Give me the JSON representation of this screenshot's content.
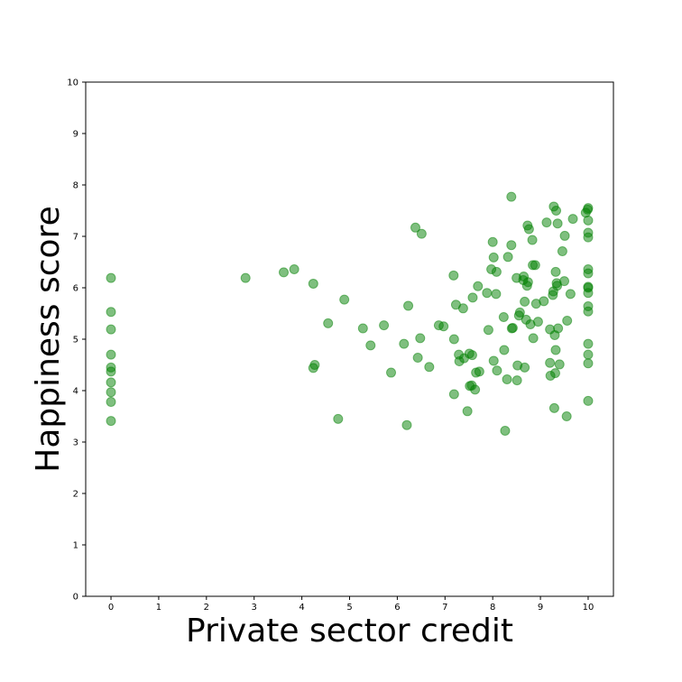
{
  "chart_data": {
    "type": "scatter",
    "title": "",
    "xlabel": "Private sector credit",
    "ylabel": "Happiness score",
    "xlim": [
      -0.53,
      10.53
    ],
    "ylim": [
      0,
      10
    ],
    "x_ticks": [
      "0",
      "1",
      "2",
      "3",
      "4",
      "5",
      "6",
      "7",
      "8",
      "9",
      "10"
    ],
    "y_ticks": [
      "0",
      "1",
      "2",
      "3",
      "4",
      "5",
      "6",
      "7",
      "8",
      "9",
      "10"
    ],
    "grid": false,
    "color": "#008000",
    "series": [
      {
        "name": "",
        "points": [
          [
            0,
            6.19
          ],
          [
            0,
            5.53
          ],
          [
            0,
            5.19
          ],
          [
            0,
            4.7
          ],
          [
            0,
            4.45
          ],
          [
            0,
            4.37
          ],
          [
            0,
            4.16
          ],
          [
            0,
            3.97
          ],
          [
            0,
            3.78
          ],
          [
            0,
            3.41
          ],
          [
            2.82,
            6.19
          ],
          [
            3.62,
            6.3
          ],
          [
            3.84,
            6.36
          ],
          [
            4.24,
            6.08
          ],
          [
            4.24,
            4.44
          ],
          [
            4.27,
            4.5
          ],
          [
            4.55,
            5.31
          ],
          [
            4.76,
            3.45
          ],
          [
            4.89,
            5.77
          ],
          [
            5.28,
            5.21
          ],
          [
            5.44,
            4.88
          ],
          [
            5.72,
            5.27
          ],
          [
            5.87,
            4.35
          ],
          [
            6.14,
            4.91
          ],
          [
            6.2,
            3.33
          ],
          [
            6.23,
            5.65
          ],
          [
            6.38,
            7.17
          ],
          [
            6.43,
            4.64
          ],
          [
            6.48,
            5.02
          ],
          [
            6.51,
            7.05
          ],
          [
            6.67,
            4.46
          ],
          [
            6.87,
            5.27
          ],
          [
            6.97,
            5.25
          ],
          [
            7.18,
            6.24
          ],
          [
            7.19,
            5.0
          ],
          [
            7.19,
            3.93
          ],
          [
            7.23,
            5.67
          ],
          [
            7.29,
            4.7
          ],
          [
            7.3,
            4.57
          ],
          [
            7.38,
            5.6
          ],
          [
            7.4,
            4.63
          ],
          [
            7.47,
            3.6
          ],
          [
            7.51,
            4.72
          ],
          [
            7.52,
            4.09
          ],
          [
            7.56,
            4.1
          ],
          [
            7.57,
            4.69
          ],
          [
            7.58,
            5.81
          ],
          [
            7.63,
            4.02
          ],
          [
            7.65,
            4.35
          ],
          [
            7.69,
            6.03
          ],
          [
            7.72,
            4.37
          ],
          [
            7.88,
            5.9
          ],
          [
            7.91,
            5.18
          ],
          [
            7.97,
            6.36
          ],
          [
            8.0,
            6.89
          ],
          [
            8.02,
            4.58
          ],
          [
            8.02,
            6.59
          ],
          [
            8.07,
            5.88
          ],
          [
            8.08,
            6.31
          ],
          [
            8.09,
            4.39
          ],
          [
            8.23,
            5.43
          ],
          [
            8.24,
            4.79
          ],
          [
            8.26,
            3.22
          ],
          [
            8.3,
            4.22
          ],
          [
            8.32,
            6.6
          ],
          [
            8.39,
            6.83
          ],
          [
            8.39,
            7.77
          ],
          [
            8.4,
            5.21
          ],
          [
            8.42,
            5.22
          ],
          [
            8.5,
            6.19
          ],
          [
            8.51,
            4.2
          ],
          [
            8.52,
            4.49
          ],
          [
            8.55,
            5.46
          ],
          [
            8.57,
            5.52
          ],
          [
            8.64,
            6.15
          ],
          [
            8.65,
            6.22
          ],
          [
            8.67,
            4.45
          ],
          [
            8.67,
            5.73
          ],
          [
            8.7,
            5.38
          ],
          [
            8.72,
            6.04
          ],
          [
            8.73,
            7.21
          ],
          [
            8.74,
            6.11
          ],
          [
            8.76,
            7.14
          ],
          [
            8.79,
            5.29
          ],
          [
            8.83,
            6.93
          ],
          [
            8.84,
            6.44
          ],
          [
            8.85,
            5.02
          ],
          [
            8.89,
            6.44
          ],
          [
            8.91,
            5.69
          ],
          [
            8.95,
            5.34
          ],
          [
            9.07,
            5.74
          ],
          [
            9.13,
            7.27
          ],
          [
            9.2,
            4.54
          ],
          [
            9.2,
            5.19
          ],
          [
            9.21,
            4.29
          ],
          [
            9.26,
            5.86
          ],
          [
            9.27,
            5.93
          ],
          [
            9.28,
            7.58
          ],
          [
            9.29,
            3.66
          ],
          [
            9.3,
            5.08
          ],
          [
            9.31,
            4.34
          ],
          [
            9.32,
            4.79
          ],
          [
            9.32,
            6.31
          ],
          [
            9.33,
            7.5
          ],
          [
            9.34,
            6.09
          ],
          [
            9.35,
            6.04
          ],
          [
            9.36,
            7.25
          ],
          [
            9.37,
            5.21
          ],
          [
            9.4,
            4.51
          ],
          [
            9.46,
            6.71
          ],
          [
            9.5,
            6.13
          ],
          [
            9.51,
            7.01
          ],
          [
            9.55,
            3.5
          ],
          [
            9.56,
            5.36
          ],
          [
            9.63,
            5.88
          ],
          [
            9.68,
            7.34
          ],
          [
            9.95,
            7.46
          ],
          [
            9.99,
            7.52
          ],
          [
            10,
            7.55
          ],
          [
            10,
            7.31
          ],
          [
            10,
            7.07
          ],
          [
            10,
            6.98
          ],
          [
            10,
            6.36
          ],
          [
            10,
            6.28
          ],
          [
            10,
            6.02
          ],
          [
            10,
            6.0
          ],
          [
            10,
            5.9
          ],
          [
            10,
            5.64
          ],
          [
            10,
            5.54
          ],
          [
            10,
            4.91
          ],
          [
            10,
            4.7
          ],
          [
            10,
            4.53
          ],
          [
            10,
            3.8
          ]
        ]
      }
    ]
  }
}
